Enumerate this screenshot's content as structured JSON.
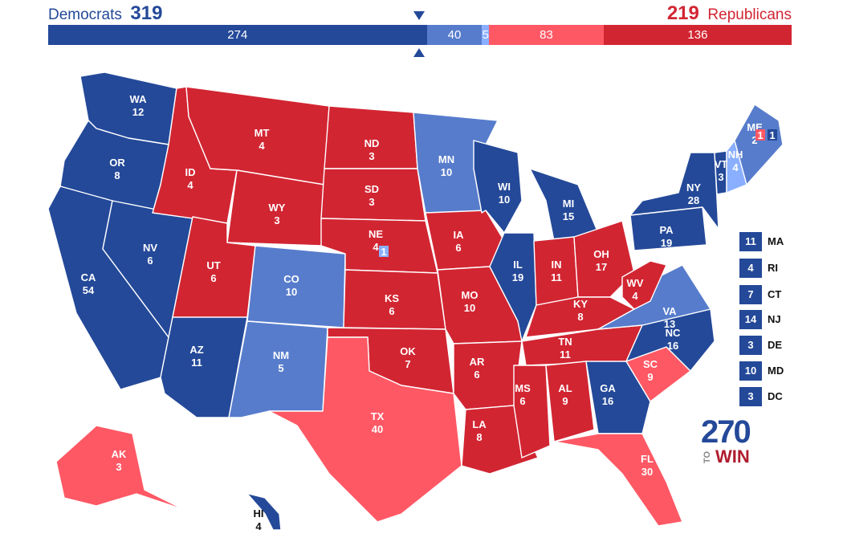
{
  "header": {
    "dem_label": "Democrats",
    "dem_total": "319",
    "rep_total": "219",
    "rep_label": "Republicans"
  },
  "ev_bar": [
    {
      "label": "274",
      "value": 274,
      "category": "solid-dem"
    },
    {
      "label": "40",
      "value": 40,
      "category": "likely-dem"
    },
    {
      "label": "5",
      "value": 5,
      "category": "lean-dem"
    },
    {
      "label": "83",
      "value": 83,
      "category": "likely-rep"
    },
    {
      "label": "136",
      "value": 136,
      "category": "solid-rep"
    }
  ],
  "colors": {
    "solid-dem": "#244999",
    "likely-dem": "#577CCC",
    "lean-dem": "#8AAFFF",
    "likely-rep": "#FF5865",
    "solid-rep": "#D22532"
  },
  "states": [
    {
      "abbr": "WA",
      "ev": "12",
      "category": "solid-dem"
    },
    {
      "abbr": "OR",
      "ev": "8",
      "category": "solid-dem"
    },
    {
      "abbr": "CA",
      "ev": "54",
      "category": "solid-dem"
    },
    {
      "abbr": "NV",
      "ev": "6",
      "category": "solid-dem"
    },
    {
      "abbr": "AZ",
      "ev": "11",
      "category": "solid-dem"
    },
    {
      "abbr": "ID",
      "ev": "4",
      "category": "solid-rep"
    },
    {
      "abbr": "MT",
      "ev": "4",
      "category": "solid-rep"
    },
    {
      "abbr": "WY",
      "ev": "3",
      "category": "solid-rep"
    },
    {
      "abbr": "UT",
      "ev": "6",
      "category": "solid-rep"
    },
    {
      "abbr": "CO",
      "ev": "10",
      "category": "likely-dem"
    },
    {
      "abbr": "NM",
      "ev": "5",
      "category": "likely-dem"
    },
    {
      "abbr": "ND",
      "ev": "3",
      "category": "solid-rep"
    },
    {
      "abbr": "SD",
      "ev": "3",
      "category": "solid-rep"
    },
    {
      "abbr": "NE",
      "ev": "4",
      "category": "solid-rep"
    },
    {
      "abbr": "KS",
      "ev": "6",
      "category": "solid-rep"
    },
    {
      "abbr": "OK",
      "ev": "7",
      "category": "solid-rep"
    },
    {
      "abbr": "TX",
      "ev": "40",
      "category": "likely-rep"
    },
    {
      "abbr": "MN",
      "ev": "10",
      "category": "likely-dem"
    },
    {
      "abbr": "IA",
      "ev": "6",
      "category": "solid-rep"
    },
    {
      "abbr": "MO",
      "ev": "10",
      "category": "solid-rep"
    },
    {
      "abbr": "AR",
      "ev": "6",
      "category": "solid-rep"
    },
    {
      "abbr": "LA",
      "ev": "8",
      "category": "solid-rep"
    },
    {
      "abbr": "WI",
      "ev": "10",
      "category": "solid-dem"
    },
    {
      "abbr": "IL",
      "ev": "19",
      "category": "solid-dem"
    },
    {
      "abbr": "MI",
      "ev": "15",
      "category": "solid-dem"
    },
    {
      "abbr": "IN",
      "ev": "11",
      "category": "solid-rep"
    },
    {
      "abbr": "OH",
      "ev": "17",
      "category": "solid-rep"
    },
    {
      "abbr": "KY",
      "ev": "8",
      "category": "solid-rep"
    },
    {
      "abbr": "TN",
      "ev": "11",
      "category": "solid-rep"
    },
    {
      "abbr": "MS",
      "ev": "6",
      "category": "solid-rep"
    },
    {
      "abbr": "AL",
      "ev": "9",
      "category": "solid-rep"
    },
    {
      "abbr": "GA",
      "ev": "16",
      "category": "solid-dem"
    },
    {
      "abbr": "FL",
      "ev": "30",
      "category": "likely-rep"
    },
    {
      "abbr": "SC",
      "ev": "9",
      "category": "likely-rep"
    },
    {
      "abbr": "NC",
      "ev": "16",
      "category": "solid-dem"
    },
    {
      "abbr": "VA",
      "ev": "13",
      "category": "likely-dem"
    },
    {
      "abbr": "WV",
      "ev": "4",
      "category": "solid-rep"
    },
    {
      "abbr": "PA",
      "ev": "19",
      "category": "solid-dem"
    },
    {
      "abbr": "NY",
      "ev": "28",
      "category": "solid-dem"
    },
    {
      "abbr": "VT",
      "ev": "3",
      "category": "solid-dem"
    },
    {
      "abbr": "NH",
      "ev": "4",
      "category": "lean-dem"
    },
    {
      "abbr": "ME",
      "ev": "2",
      "category": "likely-dem"
    },
    {
      "abbr": "AK",
      "ev": "3",
      "category": "likely-rep"
    },
    {
      "abbr": "HI",
      "ev": "4",
      "category": "solid-dem"
    }
  ],
  "districts": [
    {
      "state": "ME",
      "ev": "1",
      "category": "likely-rep"
    },
    {
      "state": "ME",
      "ev": "1",
      "category": "solid-dem"
    },
    {
      "state": "NE",
      "ev": "1",
      "category": "lean-dem"
    }
  ],
  "small_states": [
    {
      "abbr": "MA",
      "ev": "11",
      "category": "solid-dem"
    },
    {
      "abbr": "RI",
      "ev": "4",
      "category": "solid-dem"
    },
    {
      "abbr": "CT",
      "ev": "7",
      "category": "solid-dem"
    },
    {
      "abbr": "NJ",
      "ev": "14",
      "category": "solid-dem"
    },
    {
      "abbr": "DE",
      "ev": "3",
      "category": "solid-dem"
    },
    {
      "abbr": "MD",
      "ev": "10",
      "category": "solid-dem"
    },
    {
      "abbr": "DC",
      "ev": "3",
      "category": "solid-dem"
    }
  ],
  "logo": {
    "number": "270",
    "to": "TO",
    "win": "WIN"
  }
}
